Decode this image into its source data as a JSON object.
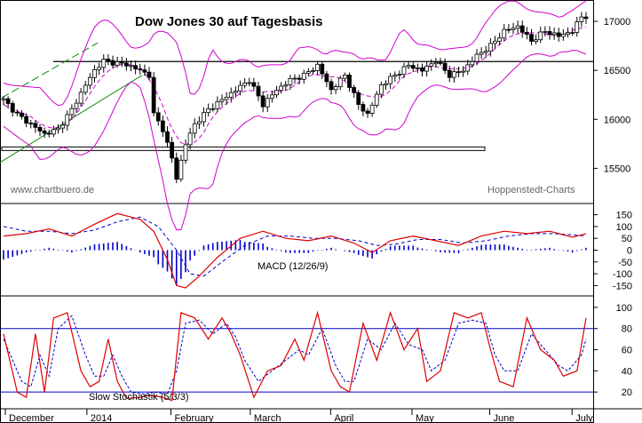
{
  "chart_data": {
    "title": "Dow Jones 30 auf Tagesbasis",
    "source_left": "www.chartbuero.de",
    "source_right": "Hoppenstedt-Charts",
    "months": [
      "December",
      "2014",
      "February",
      "March",
      "April",
      "May",
      "June",
      "July"
    ],
    "price_panel": {
      "type": "candlestick",
      "yticks": [
        17000,
        16500,
        16000,
        15500
      ],
      "ylim": [
        15150,
        17200
      ],
      "support_lines": [
        16590,
        15700
      ],
      "close_points": [
        [
          0,
          16200
        ],
        [
          3,
          16050
        ],
        [
          6,
          15950
        ],
        [
          9,
          15850
        ],
        [
          12,
          15900
        ],
        [
          15,
          16100
        ],
        [
          18,
          16350
        ],
        [
          20,
          16500
        ],
        [
          22,
          16600
        ],
        [
          24,
          16580
        ],
        [
          27,
          16560
        ],
        [
          30,
          16500
        ],
        [
          32,
          16450
        ],
        [
          33,
          16050
        ],
        [
          35,
          15900
        ],
        [
          37,
          15600
        ],
        [
          38,
          15400
        ],
        [
          40,
          15750
        ],
        [
          42,
          15950
        ],
        [
          45,
          16100
        ],
        [
          48,
          16200
        ],
        [
          51,
          16300
        ],
        [
          54,
          16400
        ],
        [
          57,
          16150
        ],
        [
          60,
          16300
        ],
        [
          63,
          16400
        ],
        [
          66,
          16450
        ],
        [
          69,
          16550
        ],
        [
          72,
          16300
        ],
        [
          75,
          16450
        ],
        [
          78,
          16150
        ],
        [
          80,
          16050
        ],
        [
          83,
          16350
        ],
        [
          86,
          16450
        ],
        [
          89,
          16550
        ],
        [
          92,
          16500
        ],
        [
          95,
          16600
        ],
        [
          98,
          16450
        ],
        [
          101,
          16500
        ],
        [
          104,
          16650
        ],
        [
          107,
          16750
        ],
        [
          110,
          16900
        ],
        [
          113,
          16950
        ],
        [
          116,
          16800
        ],
        [
          119,
          16900
        ],
        [
          122,
          16850
        ],
        [
          125,
          16900
        ],
        [
          127,
          17050
        ]
      ]
    },
    "macd_panel": {
      "label": "MACD (12/26/9)",
      "yticks": [
        150,
        100,
        50,
        0,
        -50,
        -100,
        -150
      ],
      "ylim": [
        -190,
        190
      ],
      "macd_points": [
        [
          0,
          60
        ],
        [
          5,
          70
        ],
        [
          10,
          90
        ],
        [
          15,
          60
        ],
        [
          20,
          110
        ],
        [
          25,
          155
        ],
        [
          30,
          130
        ],
        [
          33,
          80
        ],
        [
          36,
          -40
        ],
        [
          38,
          -150
        ],
        [
          40,
          -160
        ],
        [
          43,
          -110
        ],
        [
          47,
          -30
        ],
        [
          52,
          50
        ],
        [
          57,
          80
        ],
        [
          62,
          50
        ],
        [
          67,
          40
        ],
        [
          72,
          60
        ],
        [
          77,
          30
        ],
        [
          81,
          -10
        ],
        [
          85,
          40
        ],
        [
          90,
          60
        ],
        [
          95,
          40
        ],
        [
          100,
          20
        ],
        [
          105,
          60
        ],
        [
          110,
          80
        ],
        [
          115,
          70
        ],
        [
          120,
          80
        ],
        [
          125,
          55
        ],
        [
          128,
          70
        ]
      ],
      "signal_points": [
        [
          0,
          100
        ],
        [
          5,
          80
        ],
        [
          10,
          80
        ],
        [
          15,
          70
        ],
        [
          20,
          85
        ],
        [
          25,
          120
        ],
        [
          30,
          140
        ],
        [
          34,
          100
        ],
        [
          38,
          0
        ],
        [
          41,
          -100
        ],
        [
          44,
          -110
        ],
        [
          48,
          -50
        ],
        [
          53,
          20
        ],
        [
          58,
          60
        ],
        [
          63,
          60
        ],
        [
          68,
          50
        ],
        [
          73,
          50
        ],
        [
          78,
          40
        ],
        [
          82,
          20
        ],
        [
          86,
          25
        ],
        [
          91,
          45
        ],
        [
          96,
          45
        ],
        [
          101,
          30
        ],
        [
          106,
          40
        ],
        [
          111,
          60
        ],
        [
          116,
          70
        ],
        [
          121,
          70
        ],
        [
          125,
          65
        ],
        [
          128,
          60
        ]
      ]
    },
    "stoch_panel": {
      "label": "Slow Stochastik (5/3/3)",
      "yticks": [
        100,
        80,
        60,
        40,
        20
      ],
      "ylim": [
        5,
        110
      ],
      "bands": [
        80,
        20
      ],
      "k_points": [
        [
          0,
          75
        ],
        [
          3,
          20
        ],
        [
          5,
          15
        ],
        [
          7,
          75
        ],
        [
          9,
          20
        ],
        [
          11,
          90
        ],
        [
          14,
          95
        ],
        [
          17,
          40
        ],
        [
          19,
          25
        ],
        [
          21,
          30
        ],
        [
          23,
          70
        ],
        [
          25,
          30
        ],
        [
          27,
          14
        ],
        [
          30,
          15
        ],
        [
          32,
          17
        ],
        [
          35,
          15
        ],
        [
          37,
          12
        ],
        [
          39,
          95
        ],
        [
          42,
          90
        ],
        [
          45,
          70
        ],
        [
          48,
          90
        ],
        [
          50,
          75
        ],
        [
          52,
          55
        ],
        [
          55,
          15
        ],
        [
          58,
          40
        ],
        [
          61,
          45
        ],
        [
          64,
          70
        ],
        [
          66,
          50
        ],
        [
          69,
          95
        ],
        [
          72,
          40
        ],
        [
          74,
          25
        ],
        [
          76,
          20
        ],
        [
          79,
          85
        ],
        [
          82,
          50
        ],
        [
          85,
          95
        ],
        [
          88,
          60
        ],
        [
          91,
          80
        ],
        [
          93,
          30
        ],
        [
          96,
          40
        ],
        [
          99,
          95
        ],
        [
          102,
          90
        ],
        [
          105,
          95
        ],
        [
          107,
          60
        ],
        [
          109,
          30
        ],
        [
          112,
          25
        ],
        [
          115,
          90
        ],
        [
          118,
          60
        ],
        [
          121,
          50
        ],
        [
          123,
          35
        ],
        [
          126,
          40
        ],
        [
          128,
          90
        ]
      ],
      "d_points": [
        [
          0,
          70
        ],
        [
          4,
          30
        ],
        [
          6,
          25
        ],
        [
          8,
          55
        ],
        [
          10,
          35
        ],
        [
          12,
          80
        ],
        [
          15,
          92
        ],
        [
          18,
          55
        ],
        [
          20,
          35
        ],
        [
          22,
          35
        ],
        [
          24,
          55
        ],
        [
          26,
          35
        ],
        [
          28,
          20
        ],
        [
          31,
          18
        ],
        [
          33,
          20
        ],
        [
          36,
          18
        ],
        [
          38,
          40
        ],
        [
          40,
          85
        ],
        [
          43,
          88
        ],
        [
          46,
          75
        ],
        [
          49,
          85
        ],
        [
          51,
          72
        ],
        [
          53,
          50
        ],
        [
          56,
          30
        ],
        [
          59,
          40
        ],
        [
          62,
          50
        ],
        [
          65,
          60
        ],
        [
          67,
          55
        ],
        [
          70,
          80
        ],
        [
          73,
          45
        ],
        [
          75,
          30
        ],
        [
          77,
          30
        ],
        [
          80,
          70
        ],
        [
          83,
          60
        ],
        [
          86,
          85
        ],
        [
          89,
          65
        ],
        [
          92,
          60
        ],
        [
          94,
          40
        ],
        [
          97,
          50
        ],
        [
          100,
          85
        ],
        [
          103,
          88
        ],
        [
          106,
          85
        ],
        [
          108,
          55
        ],
        [
          110,
          40
        ],
        [
          113,
          40
        ],
        [
          116,
          75
        ],
        [
          119,
          60
        ],
        [
          122,
          45
        ],
        [
          124,
          40
        ],
        [
          127,
          55
        ],
        [
          128,
          70
        ]
      ]
    }
  }
}
